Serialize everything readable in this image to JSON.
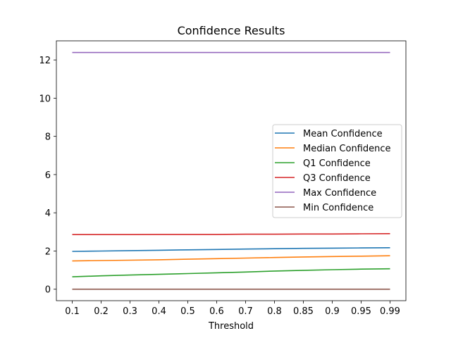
{
  "chart_data": {
    "type": "line",
    "title": "Confidence Results",
    "xlabel": "Threshold",
    "ylabel": "",
    "categories": [
      "0.1",
      "0.2",
      "0.3",
      "0.4",
      "0.5",
      "0.6",
      "0.7",
      "0.8",
      "0.85",
      "0.9",
      "0.95",
      "0.99"
    ],
    "ylim": [
      -0.6,
      13.0
    ],
    "yticks": [
      0,
      2,
      4,
      6,
      8,
      10,
      12
    ],
    "grid": false,
    "legend_position": "center-right",
    "series": [
      {
        "name": "Mean Confidence",
        "color": "#1f77b4",
        "values": [
          1.98,
          2.0,
          2.02,
          2.04,
          2.06,
          2.08,
          2.1,
          2.12,
          2.14,
          2.15,
          2.16,
          2.17
        ]
      },
      {
        "name": "Median Confidence",
        "color": "#ff7f0e",
        "values": [
          1.48,
          1.5,
          1.52,
          1.54,
          1.57,
          1.6,
          1.63,
          1.66,
          1.69,
          1.71,
          1.73,
          1.75
        ]
      },
      {
        "name": "Q1 Confidence",
        "color": "#2ca02c",
        "values": [
          0.65,
          0.7,
          0.74,
          0.78,
          0.82,
          0.86,
          0.9,
          0.95,
          0.99,
          1.02,
          1.05,
          1.07
        ]
      },
      {
        "name": "Q3 Confidence",
        "color": "#d62728",
        "values": [
          2.86,
          2.86,
          2.86,
          2.87,
          2.87,
          2.87,
          2.88,
          2.88,
          2.89,
          2.89,
          2.9,
          2.91
        ]
      },
      {
        "name": "Max Confidence",
        "color": "#9467bd",
        "values": [
          12.39,
          12.39,
          12.39,
          12.39,
          12.39,
          12.39,
          12.39,
          12.39,
          12.39,
          12.39,
          12.39,
          12.39
        ]
      },
      {
        "name": "Min Confidence",
        "color": "#8c564b",
        "values": [
          0.0,
          0.0,
          0.0,
          0.0,
          0.0,
          0.0,
          0.0,
          0.0,
          0.0,
          0.0,
          0.0,
          0.0
        ]
      }
    ]
  }
}
